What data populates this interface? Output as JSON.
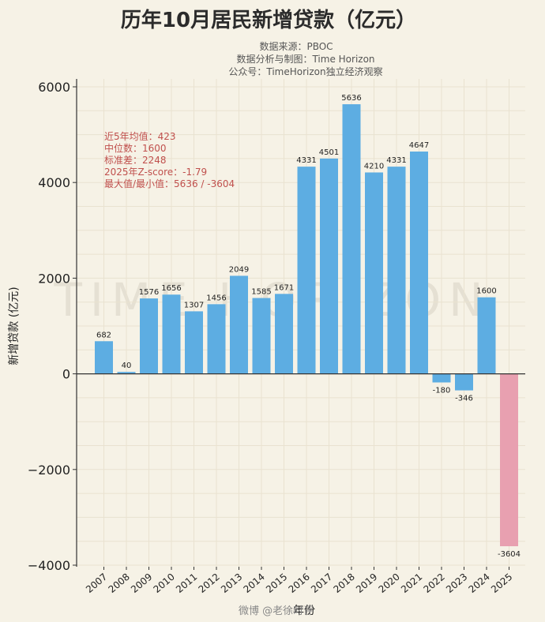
{
  "chart_data": {
    "type": "bar",
    "title": "历年10月居民新增贷款（亿元）",
    "subtitle_lines": [
      "数据来源：PBOC",
      "数据分析与制图：Time Horizon",
      "公众号：TimeHorizon独立经济观察"
    ],
    "xlabel": "年份",
    "ylabel": "新增贷款 (亿元)",
    "categories": [
      "2007",
      "2008",
      "2009",
      "2010",
      "2011",
      "2012",
      "2013",
      "2014",
      "2015",
      "2016",
      "2017",
      "2018",
      "2019",
      "2020",
      "2021",
      "2022",
      "2023",
      "2024",
      "2025"
    ],
    "values": [
      682,
      40,
      1576,
      1656,
      1307,
      1456,
      2049,
      1585,
      1671,
      4331,
      4501,
      5636,
      4210,
      4331,
      4647,
      -180,
      -346,
      1600,
      -3604
    ],
    "value_labels": [
      "682",
      "40",
      "1576",
      "1656",
      "1307",
      "1456",
      "2049",
      "1585",
      "1671",
      "4331",
      "4501",
      "5636",
      "4210",
      "4331",
      "4647",
      "-180",
      "-346",
      "1600",
      "-3604"
    ],
    "highlight_index": 18,
    "ylim": [
      -4000,
      6000
    ],
    "yticks": [
      -4000,
      -2000,
      0,
      2000,
      4000,
      6000
    ],
    "ytick_labels": [
      "−4000",
      "−2000",
      "0",
      "2000",
      "4000",
      "6000"
    ],
    "grid": true,
    "colors": {
      "bar": "#5dade2",
      "highlight": "#e8a0b0",
      "background": "#f6f2e6",
      "stats_text": "#c0504d",
      "zero_line": "#333333"
    },
    "stats_lines": [
      "近5年均值：423",
      "中位数：1600",
      "标准差：2248",
      "2025年Z-score：-1.79",
      "最大值/最小值：5636 / -3604"
    ]
  },
  "watermark": "TIME HORIZON",
  "weibo_mark": "微博 @老徐时评"
}
